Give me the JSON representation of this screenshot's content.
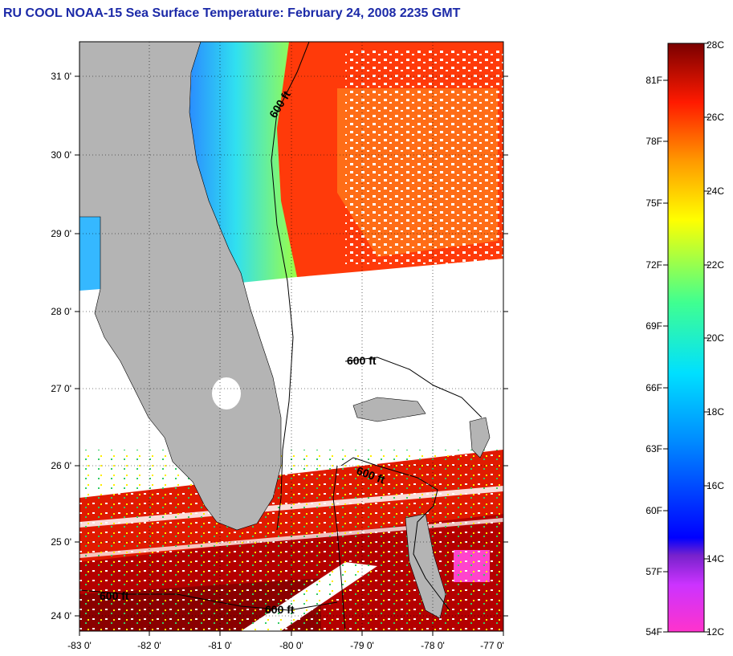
{
  "title": "RU COOL  NOAA-15  Sea Surface Temperature:  February 24, 2008 2235 GMT",
  "map": {
    "lat_labels": [
      "31 0'",
      "30 0'",
      "29 0'",
      "28 0'",
      "27 0'",
      "26 0'",
      "25 0'",
      "24 0'"
    ],
    "lon_labels": [
      "-83 0'",
      "-82 0'",
      "-81 0'",
      "-80 0'",
      "-79 0'",
      "-78 0'",
      "-77 0'"
    ],
    "contour_labels": [
      "600 ft",
      "600 ft",
      "600 ft",
      "600 ft",
      "600 ft"
    ],
    "land_color": "#b4b4b4"
  },
  "colorbar": {
    "celsius_labels": [
      "28C",
      "26C",
      "24C",
      "22C",
      "20C",
      "18C",
      "16C",
      "14C",
      "12C"
    ],
    "fahrenheit_labels": [
      "81F",
      "78F",
      "75F",
      "72F",
      "69F",
      "66F",
      "63F",
      "60F",
      "57F",
      "54F"
    ]
  }
}
